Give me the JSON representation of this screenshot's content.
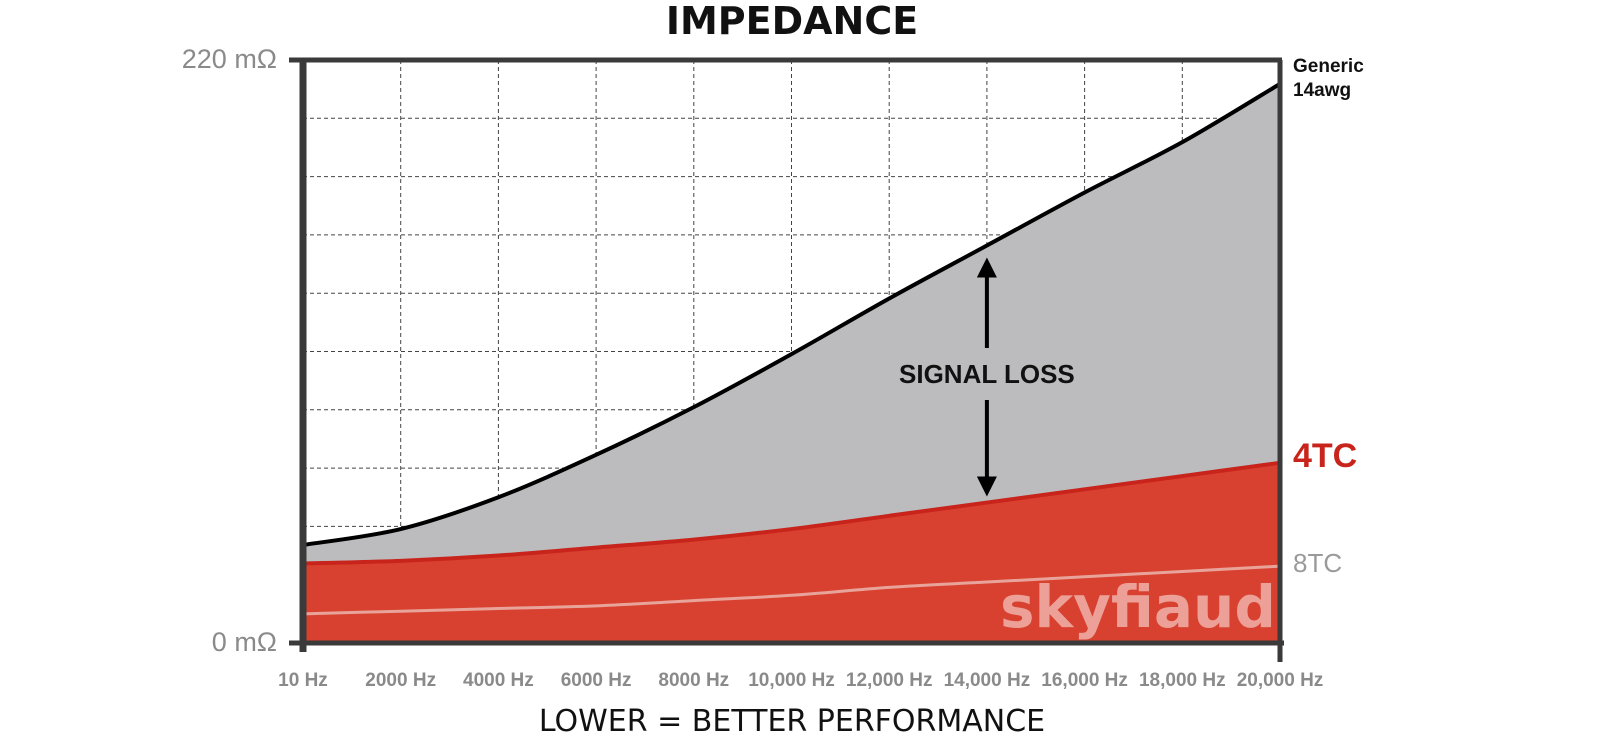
{
  "chart_data": {
    "type": "area",
    "title": "IMPEDANCE",
    "subtitle": "LOWER = BETTER PERFORMANCE",
    "y_ticks": [
      "220 mΩ",
      "0 mΩ"
    ],
    "ylim": [
      0,
      220
    ],
    "x_ticks": [
      "10 Hz",
      "2000 Hz",
      "4000 Hz",
      "6000 Hz",
      "8000 Hz",
      "10,000 Hz",
      "12,000 Hz",
      "14,000 Hz",
      "16,000 Hz",
      "18,000 Hz",
      "20,000 Hz"
    ],
    "x": [
      10,
      2000,
      4000,
      6000,
      8000,
      10000,
      12000,
      14000,
      16000,
      18000,
      20000
    ],
    "xlim": [
      10,
      20000
    ],
    "grid": true,
    "series": [
      {
        "name": "Generic 14awg",
        "label_lines": [
          "Generic",
          "14awg"
        ],
        "color": "#000000",
        "fill": "#bcbcbe",
        "values": [
          37,
          43,
          55,
          71,
          89,
          109,
          130,
          150,
          170,
          189,
          211
        ]
      },
      {
        "name": "4TC",
        "label_lines": [
          "4TC"
        ],
        "color": "#c8241b",
        "fill": "#d8412f",
        "values": [
          30,
          31,
          33,
          36,
          39,
          43,
          48,
          53,
          58,
          63,
          68
        ]
      },
      {
        "name": "8TC",
        "label_lines": [
          "8TC"
        ],
        "color": "#e8a39a",
        "fill": "none",
        "values": [
          11,
          12,
          13,
          14,
          16,
          18,
          21,
          23,
          25,
          27,
          29
        ]
      }
    ],
    "annotation": {
      "text": "SIGNAL LOSS",
      "x": 14000
    }
  },
  "watermark": "skyfiaudio"
}
